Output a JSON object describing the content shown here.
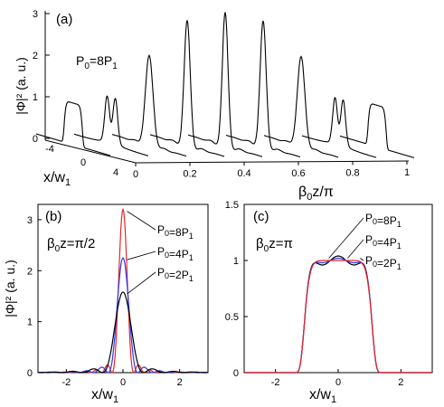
{
  "panel_a": {
    "tag": "(a)",
    "power_label": "P0=8P1",
    "y_ticks": [
      "0",
      "1",
      "2",
      "3"
    ],
    "x_ticks": [
      "-4",
      "0",
      "4"
    ],
    "z_ticks": [
      "0",
      "0.2",
      "0.4",
      "0.6",
      "0.8",
      "1"
    ]
  },
  "panel_b": {
    "tag": "(b)",
    "annotation": "β0z=π/2",
    "y_ticks": [
      "0",
      "1",
      "2",
      "3"
    ],
    "x_ticks": [
      "-2",
      "0",
      "2"
    ],
    "legend": [
      "P0=8P1",
      "P0=4P1",
      "P0=2P1"
    ]
  },
  "panel_c": {
    "tag": "(c)",
    "annotation": "β0z=π",
    "y_ticks": [
      "0",
      "0.5",
      "1",
      "1.5"
    ],
    "x_ticks": [
      "-2",
      "0",
      "2"
    ],
    "legend": [
      "P0=8P1",
      "P0=4P1",
      "P0=2P1"
    ]
  },
  "colors": {
    "p8": "#e8262a",
    "p4": "#2a3cf0",
    "p2": "#000000"
  },
  "chart_data": [
    {
      "type": "line",
      "panel": "a",
      "ylabel": "|Φ|² (a. u.)",
      "xlabel": "x/w1",
      "zlabel": "β0z/π",
      "ylim": [
        0,
        3.3
      ],
      "xlim": [
        -5,
        5
      ],
      "zlim": [
        0,
        1
      ],
      "series": [
        {
          "z": 0.0,
          "peak": 1.0,
          "shape": "flat"
        },
        {
          "z": 0.125,
          "peak": 1.2,
          "shape": "double"
        },
        {
          "z": 0.25,
          "peak": 2.1,
          "shape": "single"
        },
        {
          "z": 0.375,
          "peak": 2.95,
          "shape": "single"
        },
        {
          "z": 0.5,
          "peak": 3.15,
          "shape": "single"
        },
        {
          "z": 0.625,
          "peak": 2.95,
          "shape": "single"
        },
        {
          "z": 0.75,
          "peak": 2.1,
          "shape": "single"
        },
        {
          "z": 0.875,
          "peak": 1.2,
          "shape": "double"
        },
        {
          "z": 1.0,
          "peak": 1.0,
          "shape": "flat"
        }
      ]
    },
    {
      "type": "line",
      "panel": "b",
      "ylabel": "|Φ|² (a. u.)",
      "xlabel": "x/w1",
      "xlim": [
        -3,
        3
      ],
      "ylim": [
        0,
        3.3
      ],
      "series": [
        {
          "name": "P0=8P1",
          "peak": 3.2,
          "width": 0.38
        },
        {
          "name": "P0=4P1",
          "peak": 2.25,
          "width": 0.52
        },
        {
          "name": "P0=2P1",
          "peak": 1.58,
          "width": 0.72
        }
      ]
    },
    {
      "type": "line",
      "panel": "c",
      "ylabel": "",
      "xlabel": "x/w1",
      "xlim": [
        -3,
        3
      ],
      "ylim": [
        0,
        1.5
      ],
      "series": [
        {
          "name": "P0=8P1",
          "plateau": 1.0,
          "half_width": 1.1
        },
        {
          "name": "P0=4P1",
          "plateau": 1.0,
          "half_width": 1.1
        },
        {
          "name": "P0=2P1",
          "plateau": 1.0,
          "half_width": 1.1
        }
      ]
    }
  ]
}
